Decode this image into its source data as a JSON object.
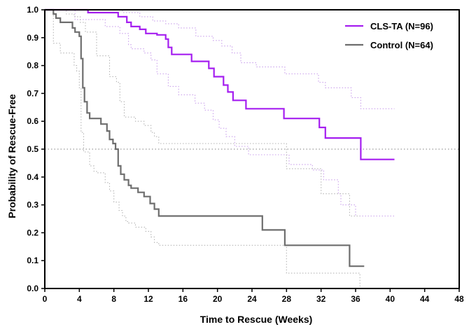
{
  "chart_data": {
    "type": "line",
    "subtype": "kaplan-meier step curve",
    "xlabel": "Time to Rescue (Weeks)",
    "ylabel": "Probability of Rescue-Free",
    "xlim": [
      0,
      48
    ],
    "ylim": [
      0,
      1.0
    ],
    "xticks": [
      0,
      4,
      8,
      12,
      16,
      20,
      24,
      28,
      32,
      36,
      40,
      44,
      48
    ],
    "xtick_labels": [
      "0",
      "4",
      "8",
      "12",
      "16",
      "20",
      "24",
      "28",
      "32",
      "36",
      "40",
      "44",
      "48"
    ],
    "yticks": [
      0,
      0.1,
      0.2,
      0.3,
      0.4,
      0.5,
      0.6,
      0.7,
      0.8,
      0.9,
      1.0
    ],
    "ytick_labels": [
      "0.0",
      "0.1",
      "0.2",
      "0.3",
      "0.4",
      "0.5",
      "0.6",
      "0.7",
      "0.8",
      "0.9",
      "1.0"
    ],
    "grid": false,
    "legend_position": "top-right",
    "reference_line": {
      "y": 0.5,
      "style": "dotted",
      "color": "#9a9a9a"
    },
    "series": [
      {
        "name": "CLS-TA (N=96)",
        "color": "#a51ff0",
        "points": [
          [
            0,
            1.0
          ],
          [
            5,
            0.99
          ],
          [
            8.5,
            0.975
          ],
          [
            9.5,
            0.955
          ],
          [
            10,
            0.94
          ],
          [
            11,
            0.93
          ],
          [
            11.7,
            0.915
          ],
          [
            13,
            0.91
          ],
          [
            14,
            0.895
          ],
          [
            14.3,
            0.865
          ],
          [
            14.7,
            0.84
          ],
          [
            17,
            0.815
          ],
          [
            19,
            0.79
          ],
          [
            19.6,
            0.76
          ],
          [
            20.7,
            0.73
          ],
          [
            21.2,
            0.705
          ],
          [
            21.8,
            0.675
          ],
          [
            23.3,
            0.645
          ],
          [
            27.7,
            0.61
          ],
          [
            31.8,
            0.578
          ],
          [
            32.5,
            0.54
          ],
          [
            36.6,
            0.463
          ],
          [
            40.5,
            0.463
          ]
        ],
        "ci_upper": [
          [
            0,
            1.0
          ],
          [
            6.5,
            1.0
          ],
          [
            9,
            0.99
          ],
          [
            11,
            0.975
          ],
          [
            12.5,
            0.96
          ],
          [
            14,
            0.95
          ],
          [
            15.5,
            0.935
          ],
          [
            17.5,
            0.905
          ],
          [
            19.5,
            0.89
          ],
          [
            20.5,
            0.87
          ],
          [
            21.7,
            0.845
          ],
          [
            22.7,
            0.81
          ],
          [
            24.5,
            0.795
          ],
          [
            27.8,
            0.77
          ],
          [
            31.7,
            0.74
          ],
          [
            32.5,
            0.72
          ],
          [
            35.5,
            0.685
          ],
          [
            36.6,
            0.645
          ],
          [
            40.5,
            0.645
          ]
        ],
        "ci_lower": [
          [
            0,
            1.0
          ],
          [
            3.5,
            0.965
          ],
          [
            7,
            0.94
          ],
          [
            8.7,
            0.915
          ],
          [
            9.7,
            0.875
          ],
          [
            10,
            0.86
          ],
          [
            11.5,
            0.845
          ],
          [
            12.3,
            0.82
          ],
          [
            13,
            0.77
          ],
          [
            14.3,
            0.725
          ],
          [
            15.5,
            0.695
          ],
          [
            17.4,
            0.665
          ],
          [
            18.5,
            0.64
          ],
          [
            19.5,
            0.605
          ],
          [
            20.2,
            0.575
          ],
          [
            21,
            0.545
          ],
          [
            22,
            0.51
          ],
          [
            23.6,
            0.48
          ],
          [
            28.3,
            0.445
          ],
          [
            31,
            0.425
          ],
          [
            32.3,
            0.39
          ],
          [
            34,
            0.34
          ],
          [
            34.3,
            0.3
          ],
          [
            36,
            0.26
          ],
          [
            40.5,
            0.26
          ]
        ]
      },
      {
        "name": "Control (N=64)",
        "color": "#6e6e6e",
        "points": [
          [
            0,
            1.0
          ],
          [
            1,
            0.985
          ],
          [
            1.3,
            0.97
          ],
          [
            1.8,
            0.955
          ],
          [
            3.2,
            0.935
          ],
          [
            3.5,
            0.92
          ],
          [
            4,
            0.905
          ],
          [
            4.2,
            0.825
          ],
          [
            4.4,
            0.72
          ],
          [
            4.6,
            0.67
          ],
          [
            4.9,
            0.63
          ],
          [
            5.2,
            0.61
          ],
          [
            6.5,
            0.59
          ],
          [
            7.2,
            0.565
          ],
          [
            7.5,
            0.535
          ],
          [
            7.9,
            0.52
          ],
          [
            8.2,
            0.5
          ],
          [
            8.5,
            0.44
          ],
          [
            8.8,
            0.41
          ],
          [
            9.2,
            0.39
          ],
          [
            9.7,
            0.37
          ],
          [
            10,
            0.36
          ],
          [
            10.8,
            0.345
          ],
          [
            11.5,
            0.33
          ],
          [
            12.2,
            0.305
          ],
          [
            12.7,
            0.285
          ],
          [
            13.2,
            0.26
          ],
          [
            25.2,
            0.21
          ],
          [
            27.8,
            0.155
          ],
          [
            35.3,
            0.08
          ],
          [
            37,
            0.08
          ]
        ],
        "ci_upper": [
          [
            0,
            1.0
          ],
          [
            1.3,
            1.0
          ],
          [
            2.5,
            0.985
          ],
          [
            3.4,
            0.975
          ],
          [
            4.1,
            0.955
          ],
          [
            4.7,
            0.92
          ],
          [
            6,
            0.835
          ],
          [
            7.5,
            0.76
          ],
          [
            8.3,
            0.74
          ],
          [
            8.7,
            0.67
          ],
          [
            9.2,
            0.615
          ],
          [
            10.5,
            0.6
          ],
          [
            11.5,
            0.585
          ],
          [
            12.3,
            0.56
          ],
          [
            12.7,
            0.545
          ],
          [
            13.2,
            0.52
          ],
          [
            24.8,
            0.52
          ],
          [
            28,
            0.43
          ],
          [
            32,
            0.34
          ],
          [
            35.3,
            0.26
          ],
          [
            36.5,
            0.26
          ]
        ],
        "ci_lower": [
          [
            0,
            1.0
          ],
          [
            1,
            0.88
          ],
          [
            1.8,
            0.845
          ],
          [
            3.4,
            0.8
          ],
          [
            3.7,
            0.78
          ],
          [
            4,
            0.72
          ],
          [
            4.2,
            0.56
          ],
          [
            4.5,
            0.49
          ],
          [
            5.2,
            0.44
          ],
          [
            5.7,
            0.42
          ],
          [
            6,
            0.415
          ],
          [
            7,
            0.38
          ],
          [
            7.5,
            0.35
          ],
          [
            8,
            0.31
          ],
          [
            8.6,
            0.28
          ],
          [
            9,
            0.26
          ],
          [
            9.4,
            0.24
          ],
          [
            9.7,
            0.235
          ],
          [
            10.5,
            0.22
          ],
          [
            11.7,
            0.205
          ],
          [
            12.3,
            0.185
          ],
          [
            12.7,
            0.165
          ],
          [
            13.2,
            0.155
          ],
          [
            25.3,
            0.155
          ],
          [
            28,
            0.055
          ],
          [
            35.4,
            0.055
          ],
          [
            36.5,
            0.0
          ]
        ]
      }
    ]
  }
}
